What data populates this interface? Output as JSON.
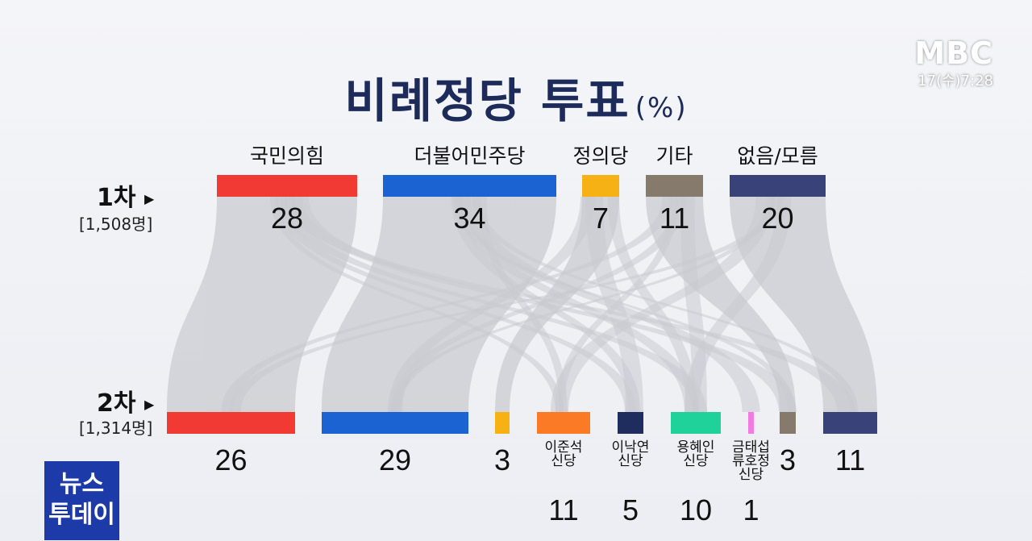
{
  "header": {
    "title": "비례정당 투표",
    "title_unit": "(%)",
    "logo": "MBC",
    "clock": "17(수)7:28"
  },
  "rows": {
    "first": {
      "label": "1차",
      "sample": "[1,508명]"
    },
    "second": {
      "label": "2차",
      "sample": "[1,314명]"
    }
  },
  "badge": {
    "line1": "뉴스",
    "line2": "투데이"
  },
  "chart_data": {
    "type": "sankey",
    "title": "비례정당 투표(%)",
    "stages": [
      "1차",
      "2차"
    ],
    "first": [
      {
        "label": "국민의힘",
        "value": 28,
        "color": "#f23a35"
      },
      {
        "label": "더불어민주당",
        "value": 34,
        "color": "#1b62d3"
      },
      {
        "label": "정의당",
        "value": 7,
        "color": "#f6b114"
      },
      {
        "label": "기타",
        "value": 11,
        "color": "#857a6c"
      },
      {
        "label": "없음/모름",
        "value": 20,
        "color": "#39437a"
      }
    ],
    "second": [
      {
        "label": "",
        "value": 26,
        "color": "#f23a35"
      },
      {
        "label": "",
        "value": 29,
        "color": "#1b62d3"
      },
      {
        "label": "",
        "value": 3,
        "color": "#f6b114"
      },
      {
        "label": "이준석 신당",
        "value": 11,
        "color": "#fb7a26"
      },
      {
        "label": "이낙연 신당",
        "value": 5,
        "color": "#1f2d5e"
      },
      {
        "label": "용혜인 신당",
        "value": 10,
        "color": "#1fd29a"
      },
      {
        "label": "금태섭 류호정 신당",
        "value": 1,
        "color": "#f27be0"
      },
      {
        "label": "",
        "value": 3,
        "color": "#857a6c"
      },
      {
        "label": "",
        "value": 11,
        "color": "#39437a"
      }
    ]
  }
}
